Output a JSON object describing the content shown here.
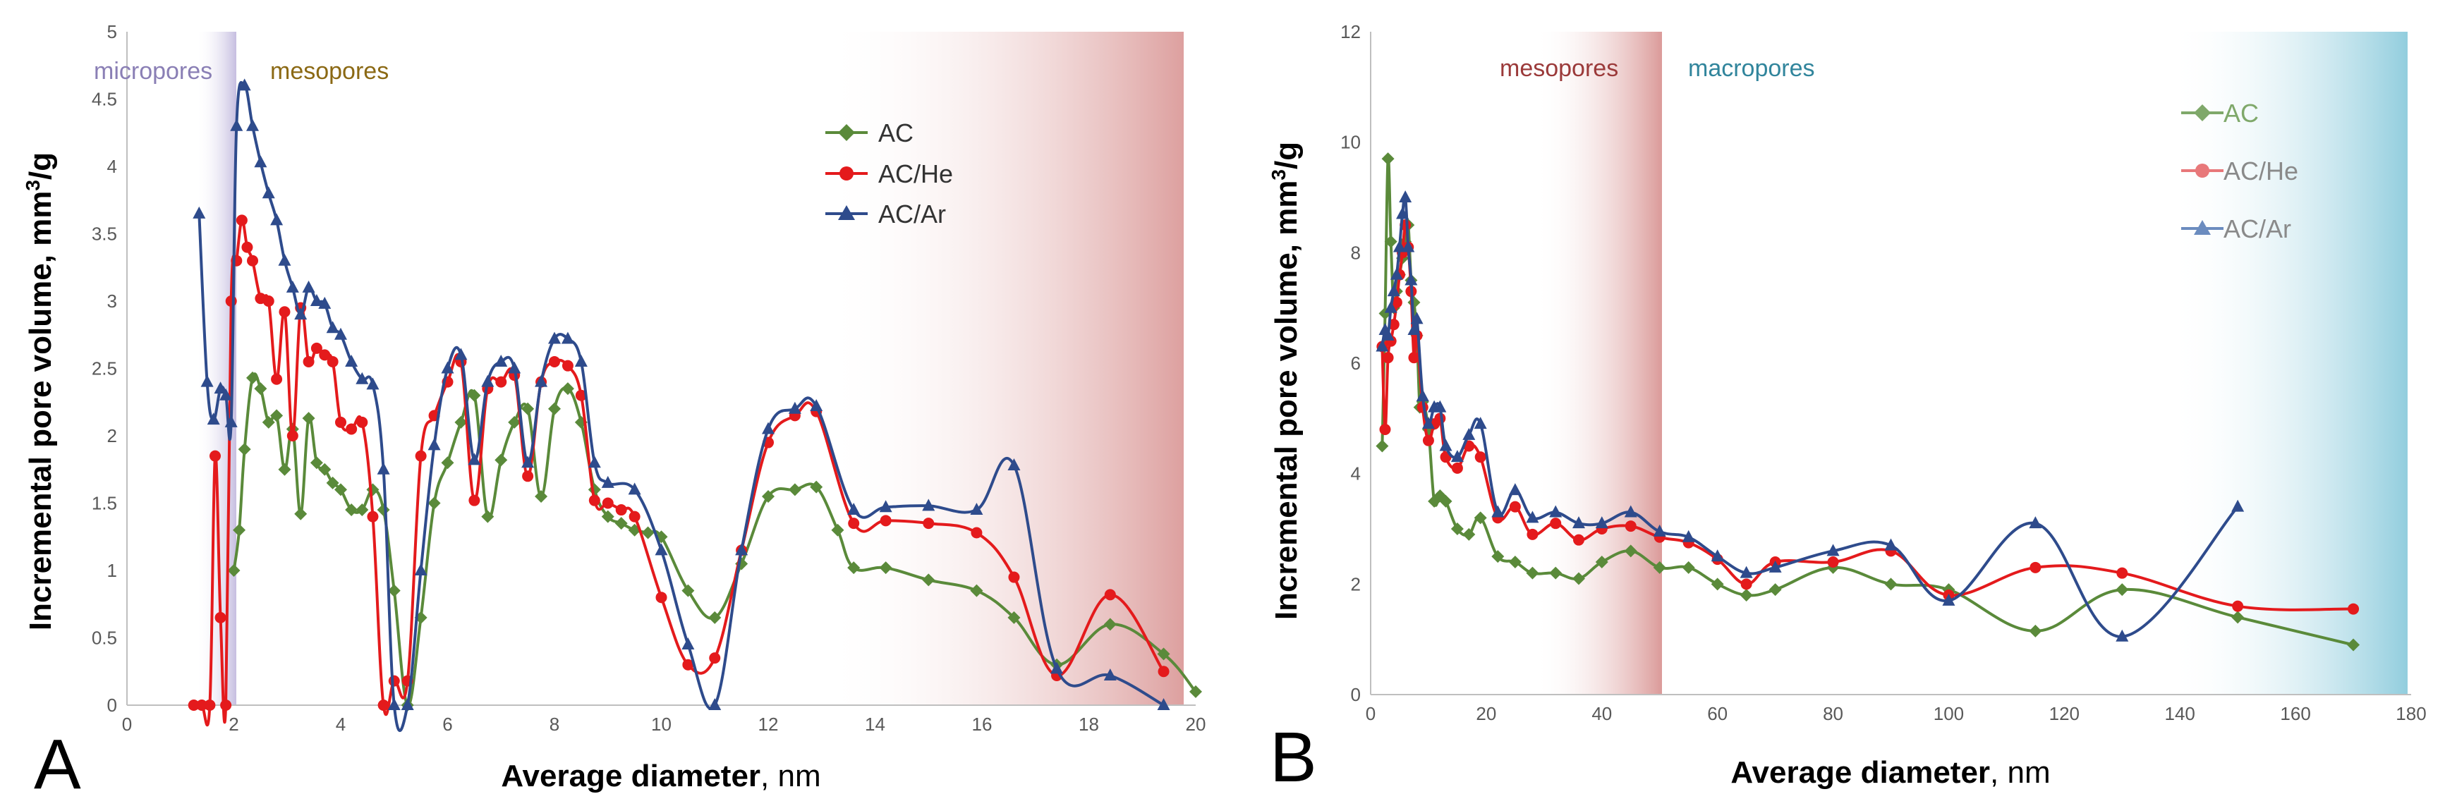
{
  "chart_data": [
    {
      "type": "line",
      "panel_label": "A",
      "xlabel_bold": "Average diameter",
      "xlabel_rest": ", nm",
      "ylabel_main": "Incremental pore volume, mm",
      "ylabel_sup": "3",
      "ylabel_tail": "/g",
      "xlim": [
        0,
        20
      ],
      "ylim": [
        0,
        5
      ],
      "xticks": [
        "0",
        "2",
        "4",
        "6",
        "8",
        "10",
        "12",
        "14",
        "16",
        "18",
        "20"
      ],
      "yticks": [
        "0",
        "0.5",
        "1",
        "1.5",
        "2",
        "2.5",
        "3",
        "3.5",
        "4",
        "4.5",
        "5"
      ],
      "legend_position": "top-right",
      "regions": [
        {
          "label": "micropores",
          "start": 1.4,
          "end": 2.1,
          "color": "#9b8fc4",
          "label_color": "#8a7fb5"
        },
        {
          "label": "mesopores",
          "start": 2.1,
          "end": 20,
          "color": "#d99594",
          "label_color": "#8b6914"
        }
      ],
      "series": [
        {
          "name": "AC",
          "color": "#5a8a3a",
          "marker": "diamond",
          "x": [
            2.0,
            2.1,
            2.2,
            2.35,
            2.5,
            2.65,
            2.8,
            2.95,
            3.1,
            3.25,
            3.4,
            3.55,
            3.7,
            3.85,
            4.0,
            4.2,
            4.4,
            4.6,
            4.8,
            5.0,
            5.25,
            5.5,
            5.75,
            6.0,
            6.25,
            6.5,
            6.75,
            7.0,
            7.25,
            7.5,
            7.75,
            8.0,
            8.25,
            8.5,
            8.75,
            9.0,
            9.25,
            9.5,
            9.75,
            10.0,
            10.5,
            11.0,
            11.5,
            12.0,
            12.5,
            12.9,
            13.3,
            13.6,
            14.2,
            15.0,
            15.9,
            16.6,
            17.4,
            18.4,
            19.4,
            20.0
          ],
          "y": [
            1.0,
            1.3,
            1.9,
            2.43,
            2.35,
            2.1,
            2.15,
            1.75,
            2.05,
            1.42,
            2.13,
            1.8,
            1.75,
            1.65,
            1.6,
            1.45,
            1.45,
            1.6,
            1.45,
            0.85,
            0.0,
            0.65,
            1.5,
            1.8,
            2.1,
            2.3,
            1.4,
            1.82,
            2.1,
            2.2,
            1.55,
            2.2,
            2.35,
            2.1,
            1.6,
            1.4,
            1.35,
            1.3,
            1.28,
            1.25,
            0.85,
            0.65,
            1.05,
            1.55,
            1.6,
            1.62,
            1.3,
            1.02,
            1.02,
            0.93,
            0.85,
            0.65,
            0.3,
            0.6,
            0.38,
            0.1
          ]
        },
        {
          "name": "AC/He",
          "color": "#e41a1c",
          "marker": "circle",
          "x": [
            1.25,
            1.4,
            1.55,
            1.65,
            1.75,
            1.85,
            1.95,
            2.05,
            2.15,
            2.25,
            2.35,
            2.5,
            2.65,
            2.8,
            2.95,
            3.1,
            3.25,
            3.4,
            3.55,
            3.7,
            3.85,
            4.0,
            4.2,
            4.4,
            4.6,
            4.8,
            5.0,
            5.25,
            5.5,
            5.75,
            6.0,
            6.25,
            6.5,
            6.75,
            7.0,
            7.25,
            7.5,
            7.75,
            8.0,
            8.25,
            8.5,
            8.75,
            9.0,
            9.25,
            9.5,
            10.0,
            10.5,
            11.0,
            11.5,
            12.0,
            12.5,
            12.9,
            13.6,
            14.2,
            15.0,
            15.9,
            16.6,
            17.4,
            18.4,
            19.4
          ],
          "y": [
            0.0,
            0.0,
            0.0,
            1.85,
            0.65,
            0.0,
            3.0,
            3.3,
            3.6,
            3.4,
            3.3,
            3.02,
            3.0,
            2.42,
            2.92,
            2.0,
            2.95,
            2.55,
            2.65,
            2.6,
            2.55,
            2.1,
            2.05,
            2.1,
            1.4,
            0.0,
            0.18,
            0.18,
            1.85,
            2.15,
            2.4,
            2.55,
            1.52,
            2.35,
            2.4,
            2.45,
            1.7,
            2.4,
            2.55,
            2.52,
            2.3,
            1.52,
            1.5,
            1.45,
            1.4,
            0.8,
            0.3,
            0.35,
            1.15,
            1.95,
            2.15,
            2.18,
            1.35,
            1.37,
            1.35,
            1.28,
            0.95,
            0.22,
            0.82,
            0.25
          ]
        },
        {
          "name": "AC/Ar",
          "color": "#2e4b8c",
          "marker": "triangle",
          "x": [
            1.35,
            1.5,
            1.62,
            1.75,
            1.85,
            1.95,
            2.05,
            2.2,
            2.35,
            2.5,
            2.65,
            2.8,
            2.95,
            3.1,
            3.25,
            3.4,
            3.55,
            3.7,
            3.85,
            4.0,
            4.2,
            4.4,
            4.6,
            4.8,
            5.0,
            5.25,
            5.5,
            5.75,
            6.0,
            6.25,
            6.5,
            6.75,
            7.0,
            7.25,
            7.5,
            7.75,
            8.0,
            8.25,
            8.5,
            8.75,
            9.0,
            9.5,
            10.0,
            10.5,
            11.0,
            11.5,
            12.0,
            12.5,
            12.9,
            13.6,
            14.2,
            15.0,
            15.9,
            16.6,
            17.4,
            18.4,
            19.4
          ],
          "y": [
            3.65,
            2.4,
            2.12,
            2.35,
            2.3,
            2.1,
            4.3,
            4.6,
            4.3,
            4.03,
            3.8,
            3.6,
            3.3,
            3.1,
            2.9,
            3.1,
            3.0,
            2.98,
            2.8,
            2.75,
            2.55,
            2.42,
            2.38,
            1.75,
            0.0,
            0.0,
            1.0,
            1.93,
            2.5,
            2.6,
            1.82,
            2.4,
            2.55,
            2.5,
            1.8,
            2.4,
            2.72,
            2.72,
            2.55,
            1.8,
            1.65,
            1.6,
            1.15,
            0.45,
            0.0,
            1.15,
            2.05,
            2.2,
            2.22,
            1.45,
            1.47,
            1.48,
            1.45,
            1.78,
            0.27,
            0.22,
            0.0
          ]
        }
      ]
    },
    {
      "type": "line",
      "panel_label": "B",
      "xlabel_bold": "Average diameter",
      "xlabel_rest": ", nm",
      "ylabel_main": "Incremental pore volume, mm",
      "ylabel_sup": "3",
      "ylabel_tail": "/g",
      "xlim": [
        0,
        180
      ],
      "ylim": [
        0,
        12
      ],
      "xticks": [
        "0",
        "20",
        "40",
        "60",
        "80",
        "100",
        "120",
        "140",
        "160",
        "180"
      ],
      "yticks": [
        "0",
        "2",
        "4",
        "6",
        "8",
        "10",
        "12"
      ],
      "legend_position": "top-right",
      "regions": [
        {
          "label": "mesopores",
          "start": 30,
          "end": 50,
          "color": "#d99594",
          "label_color": "#9b3a3a"
        },
        {
          "label": "macropores",
          "start": 50,
          "end": 180,
          "color": "#a6d6e3",
          "label_color": "#31859c"
        }
      ],
      "series": [
        {
          "name": "AC",
          "color": "#5a8a3a",
          "marker": "diamond",
          "x": [
            2,
            2.5,
            3,
            3.5,
            4,
            4.5,
            5,
            5.5,
            6,
            6.5,
            7,
            7.5,
            8,
            8.5,
            9,
            10,
            11,
            12,
            13,
            15,
            17,
            19,
            22,
            25,
            28,
            32,
            36,
            40,
            45,
            50,
            55,
            60,
            65,
            70,
            80,
            90,
            100,
            115,
            130,
            150,
            170
          ],
          "y": [
            4.5,
            6.9,
            9.7,
            8.2,
            7.0,
            7.3,
            7.6,
            7.9,
            8.2,
            8.5,
            7.5,
            7.1,
            6.5,
            5.2,
            5.3,
            4.8,
            3.5,
            3.6,
            3.5,
            3.0,
            2.9,
            3.2,
            2.5,
            2.4,
            2.2,
            2.2,
            2.1,
            2.4,
            2.6,
            2.3,
            2.3,
            2.0,
            1.8,
            1.9,
            2.3,
            2.0,
            1.9,
            1.15,
            1.9,
            1.4,
            0.9
          ]
        },
        {
          "name": "AC/He",
          "color": "#e41a1c",
          "marker": "circle",
          "x": [
            2,
            2.5,
            3,
            3.5,
            4,
            4.5,
            5,
            5.5,
            6,
            6.5,
            7,
            7.5,
            8,
            9,
            10,
            11,
            12,
            13,
            15,
            17,
            19,
            22,
            25,
            28,
            32,
            36,
            40,
            45,
            50,
            55,
            60,
            65,
            70,
            80,
            90,
            100,
            115,
            130,
            150,
            170
          ],
          "y": [
            6.3,
            4.8,
            6.1,
            6.4,
            6.7,
            7.1,
            7.6,
            8.0,
            8.5,
            8.1,
            7.3,
            6.1,
            6.5,
            5.2,
            4.6,
            4.9,
            5.0,
            4.3,
            4.1,
            4.5,
            4.3,
            3.2,
            3.4,
            2.9,
            3.1,
            2.8,
            3.0,
            3.05,
            2.85,
            2.75,
            2.45,
            2.0,
            2.4,
            2.4,
            2.6,
            1.8,
            2.3,
            2.2,
            1.6,
            1.55
          ]
        },
        {
          "name": "AC/Ar",
          "color": "#2e4b8c",
          "marker": "triangle",
          "x": [
            2,
            2.5,
            3,
            3.5,
            4,
            4.5,
            5,
            5.5,
            6,
            6.5,
            7,
            7.5,
            8,
            9,
            10,
            11,
            12,
            13,
            15,
            17,
            19,
            22,
            25,
            28,
            32,
            36,
            40,
            45,
            50,
            55,
            60,
            65,
            70,
            80,
            90,
            100,
            115,
            130,
            150
          ],
          "y": [
            6.3,
            6.6,
            6.5,
            7.0,
            7.3,
            7.6,
            8.1,
            8.7,
            9.0,
            8.1,
            7.5,
            6.6,
            6.8,
            5.4,
            4.9,
            5.2,
            5.2,
            4.5,
            4.3,
            4.7,
            4.9,
            3.3,
            3.7,
            3.2,
            3.3,
            3.1,
            3.1,
            3.3,
            2.95,
            2.85,
            2.5,
            2.2,
            2.3,
            2.6,
            2.7,
            1.7,
            3.1,
            1.05,
            3.4
          ]
        }
      ]
    }
  ]
}
